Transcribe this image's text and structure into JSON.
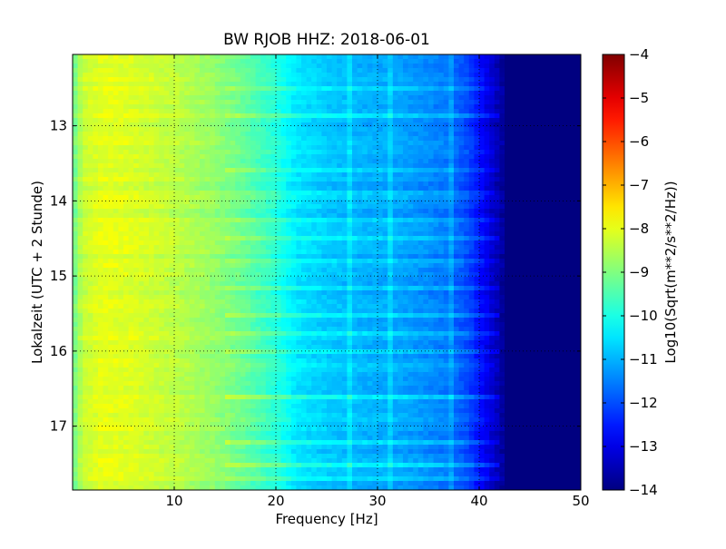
{
  "chart_data": {
    "type": "heatmap",
    "title": "BW RJOB HHZ: 2018-06-01",
    "xlabel": "Frequency [Hz]",
    "ylabel": "Lokalzeit (UTC + 2 Stunde)",
    "xlim": [
      0,
      50
    ],
    "ylim": [
      12.05,
      17.85
    ],
    "y_inverted": true,
    "x_ticks": [
      10,
      20,
      30,
      40,
      50
    ],
    "y_ticks": [
      13,
      14,
      15,
      16,
      17
    ],
    "grid": true,
    "colormap": "jet",
    "colorbar": {
      "label": "Log10(Sqrt(m**2/s**2/Hz))",
      "range": [
        -14,
        -4
      ],
      "ticks": [
        -4,
        -5,
        -6,
        -7,
        -8,
        -9,
        -10,
        -11,
        -12,
        -13,
        -14
      ]
    },
    "spectrum_profile": {
      "frequency": [
        0,
        1,
        3,
        6,
        10,
        14,
        17,
        20,
        22,
        25,
        28,
        31,
        34,
        37,
        39,
        40,
        41,
        42,
        43,
        50
      ],
      "log_amplitude": [
        -9.3,
        -8.3,
        -8.0,
        -8.1,
        -8.4,
        -8.8,
        -9.3,
        -9.9,
        -10.5,
        -10.8,
        -11.0,
        -11.1,
        -11.3,
        -11.6,
        -12.1,
        -12.6,
        -13.1,
        -13.6,
        -14.0,
        -14.0
      ]
    },
    "horizontal_bands_hours": [
      12.48,
      12.85,
      13.32,
      13.58,
      13.92,
      14.28,
      14.48,
      14.82,
      15.18,
      15.52,
      15.78,
      16.02,
      16.22,
      16.62,
      16.88,
      17.22,
      17.52,
      17.72
    ],
    "spectral_lines_hz": [
      27.3,
      31.3,
      37.3
    ]
  },
  "colors": {
    "axes_frame": "#000000",
    "grid": "#000000",
    "background": "#ffffff"
  }
}
